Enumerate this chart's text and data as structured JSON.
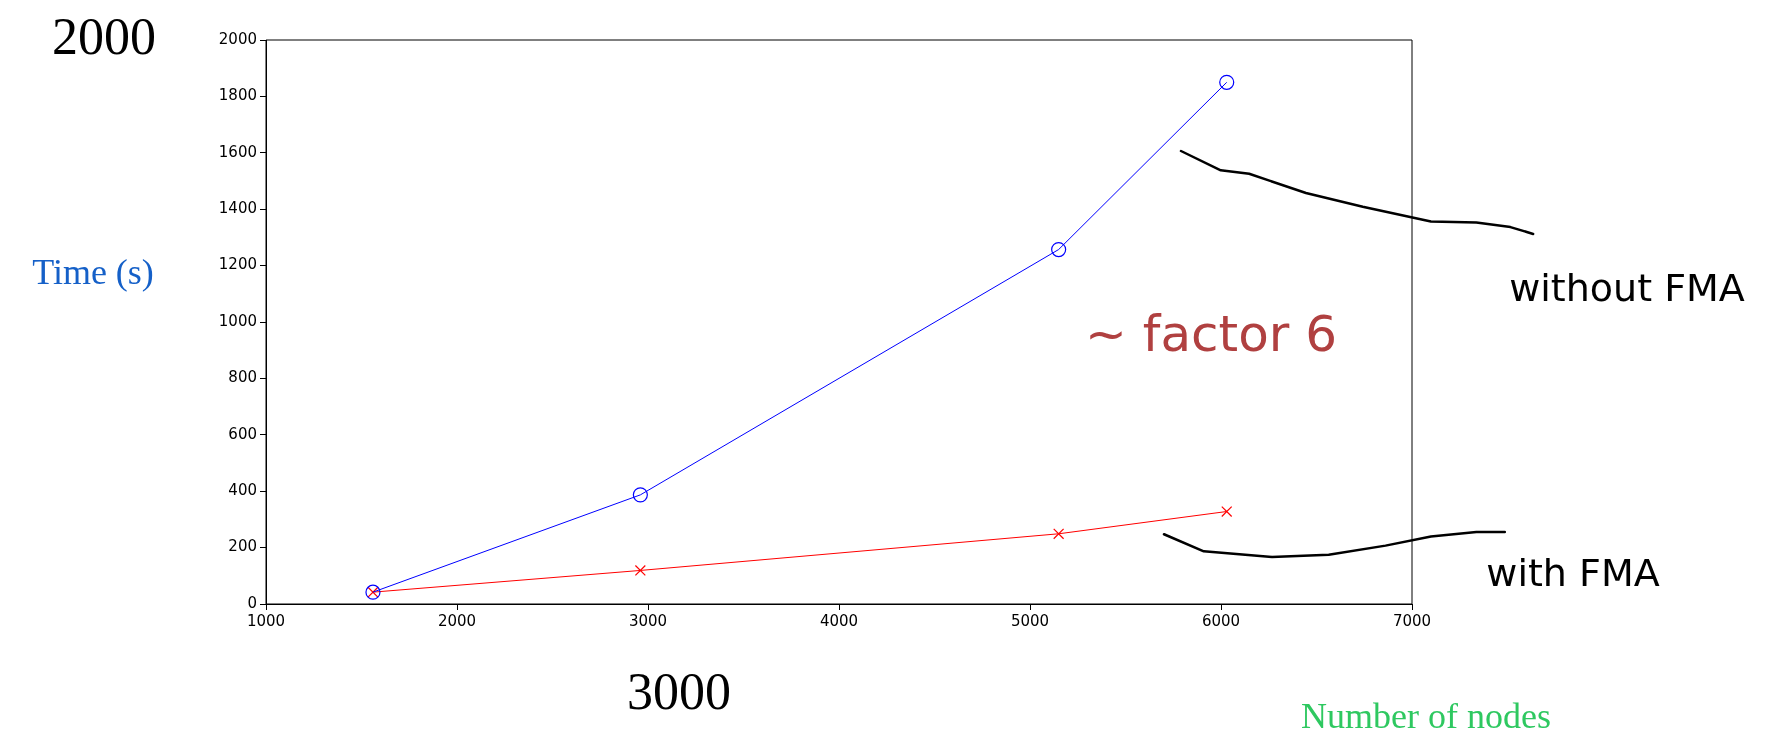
{
  "chart_data": {
    "type": "line",
    "xlabel": "Number of nodes",
    "ylabel": "Time (s)",
    "xlim": [
      1000,
      7000
    ],
    "xticks": [
      1000,
      2000,
      3000,
      4000,
      5000,
      6000,
      7000
    ],
    "ylim": [
      0,
      2000
    ],
    "yticks": [
      0,
      200,
      400,
      600,
      800,
      1000,
      1200,
      1400,
      1600,
      1800,
      2000
    ],
    "grid": false,
    "legend": false,
    "line_style": "solid",
    "series": [
      {
        "name": "without FMA",
        "color": "#0000ff",
        "marker": "circle",
        "x": [
          1560,
          2960,
          5150,
          6030
        ],
        "values": [
          42,
          387,
          1257,
          1850
        ]
      },
      {
        "name": "with FMA",
        "color": "#ff0000",
        "marker": "cross",
        "x": [
          1560,
          2960,
          5150,
          6030
        ],
        "values": [
          42,
          119,
          249,
          328
        ]
      }
    ],
    "annotations": [
      "2000",
      "3000",
      "~ factor 6"
    ]
  }
}
